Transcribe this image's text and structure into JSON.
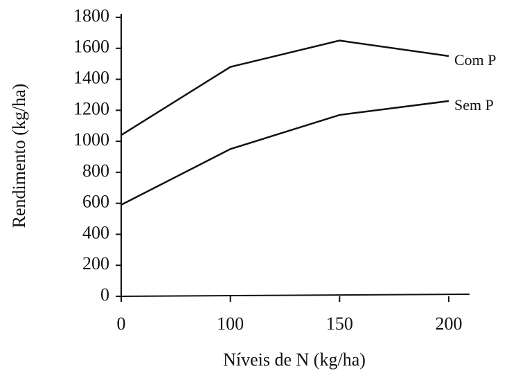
{
  "chart_data": {
    "type": "line",
    "x_label": "Níveis de N (kg/ha)",
    "y_label": "Rendimento (kg/ha)",
    "categories": [
      "0",
      "100",
      "150",
      "200"
    ],
    "series": [
      {
        "name": "Com P",
        "color": "#111111",
        "values": [
          1040,
          1480,
          1650,
          1550
        ]
      },
      {
        "name": "Sem P",
        "color": "#111111",
        "values": [
          590,
          950,
          1170,
          1260
        ]
      }
    ],
    "ylim": [
      0,
      1800
    ],
    "yticks": [
      0,
      200,
      400,
      600,
      800,
      1000,
      1200,
      1400,
      1600,
      1800
    ]
  }
}
